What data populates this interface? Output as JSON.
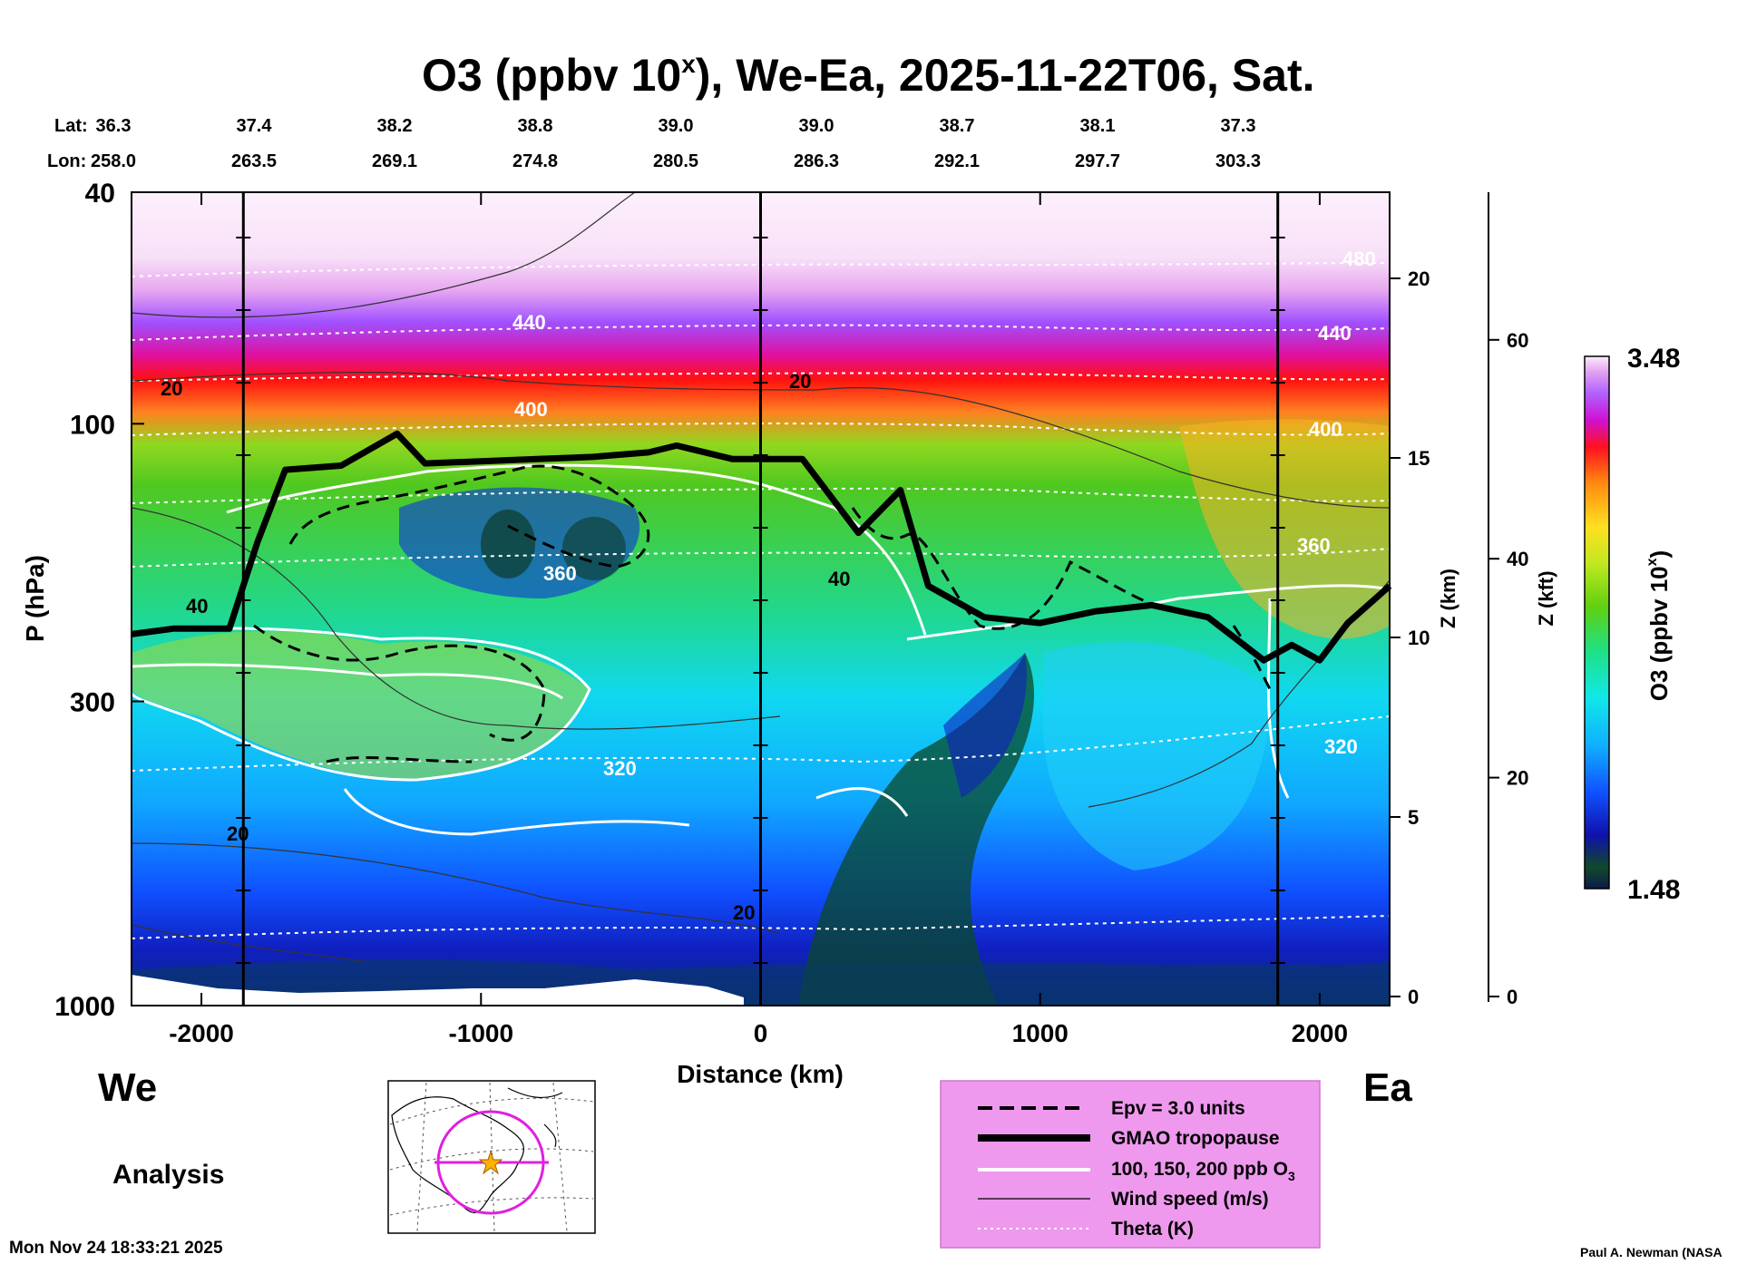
{
  "chart_data": {
    "type": "heatmap",
    "title": "O3 (ppbv 10",
    "title_sup": "x",
    "title_rest": "), We-Ea, 2025-11-22T06, Sat.",
    "xlabel": "Distance (km)",
    "ylabel": "P (hPa)",
    "right_axis1_label": "Z (km)",
    "right_axis2_label": "Z (kft)",
    "colorbar_label": "O3 (ppbv 10",
    "colorbar_sup": "x",
    "colorbar_close": ")",
    "colorbar_max": "3.48",
    "colorbar_min": "1.48",
    "colorbar_range": [
      1.48,
      3.48
    ],
    "xlim": [
      -2250,
      2250
    ],
    "ylim_hpa": [
      1000,
      40
    ],
    "x_ticks": [
      "-2000",
      "-1000",
      "0",
      "1000",
      "2000"
    ],
    "x_tick_values": [
      -2000,
      -1000,
      0,
      1000,
      2000
    ],
    "y_ticks": [
      "40",
      "100",
      "300",
      "1000"
    ],
    "y_tick_values": [
      40,
      100,
      300,
      1000
    ],
    "z_km_ticks": [
      "0",
      "5",
      "10",
      "15",
      "20"
    ],
    "z_kft_ticks": [
      "0",
      "20",
      "40",
      "60"
    ],
    "lat_label": "Lat:",
    "lon_label": "Lon:",
    "lat": [
      "36.3",
      "37.4",
      "38.2",
      "38.8",
      "39.0",
      "39.0",
      "38.7",
      "38.1",
      "37.3"
    ],
    "lon": [
      "258.0",
      "263.5",
      "269.1",
      "274.8",
      "280.5",
      "286.3",
      "292.1",
      "297.7",
      "303.3"
    ],
    "marker_distances": [
      -1850,
      0,
      1850
    ],
    "tropopause_hpa": {
      "x": [
        -2250,
        -2100,
        -1900,
        -1800,
        -1700,
        -1500,
        -1300,
        -1200,
        -1000,
        -800,
        -600,
        -400,
        -300,
        -100,
        0,
        150,
        350,
        500,
        600,
        800,
        1000,
        1200,
        1400,
        1600,
        1800,
        1900,
        2000,
        2100,
        2250
      ],
      "p": [
        230,
        225,
        225,
        160,
        120,
        118,
        104,
        117,
        116,
        115,
        114,
        112,
        109,
        115,
        115,
        115,
        154,
        130,
        190,
        215,
        220,
        210,
        205,
        215,
        255,
        240,
        255,
        220,
        190
      ]
    },
    "contour_labels": [
      "440",
      "400",
      "360",
      "320",
      "20",
      "40",
      "480"
    ],
    "ends": {
      "left": "We",
      "right": "Ea"
    },
    "analysis_label": "Analysis",
    "timestamp": "Mon Nov 24 18:33:21 2025",
    "credit": "Paul A. Newman (NASA",
    "legend": [
      {
        "label": "Epv = 3.0 units",
        "style": "dashed"
      },
      {
        "label": "GMAO tropopause",
        "style": "thick"
      },
      {
        "label": "100, 150, 200 ppb O",
        "sub": "3",
        "style": "white"
      },
      {
        "label": "Wind speed (m/s)",
        "style": "thin"
      },
      {
        "label": "Theta (K)",
        "style": "dotted"
      }
    ],
    "colors": {
      "legend_bg": "#ee99ee",
      "map_circle": "#e020e0",
      "map_star": "#ffb000"
    }
  }
}
